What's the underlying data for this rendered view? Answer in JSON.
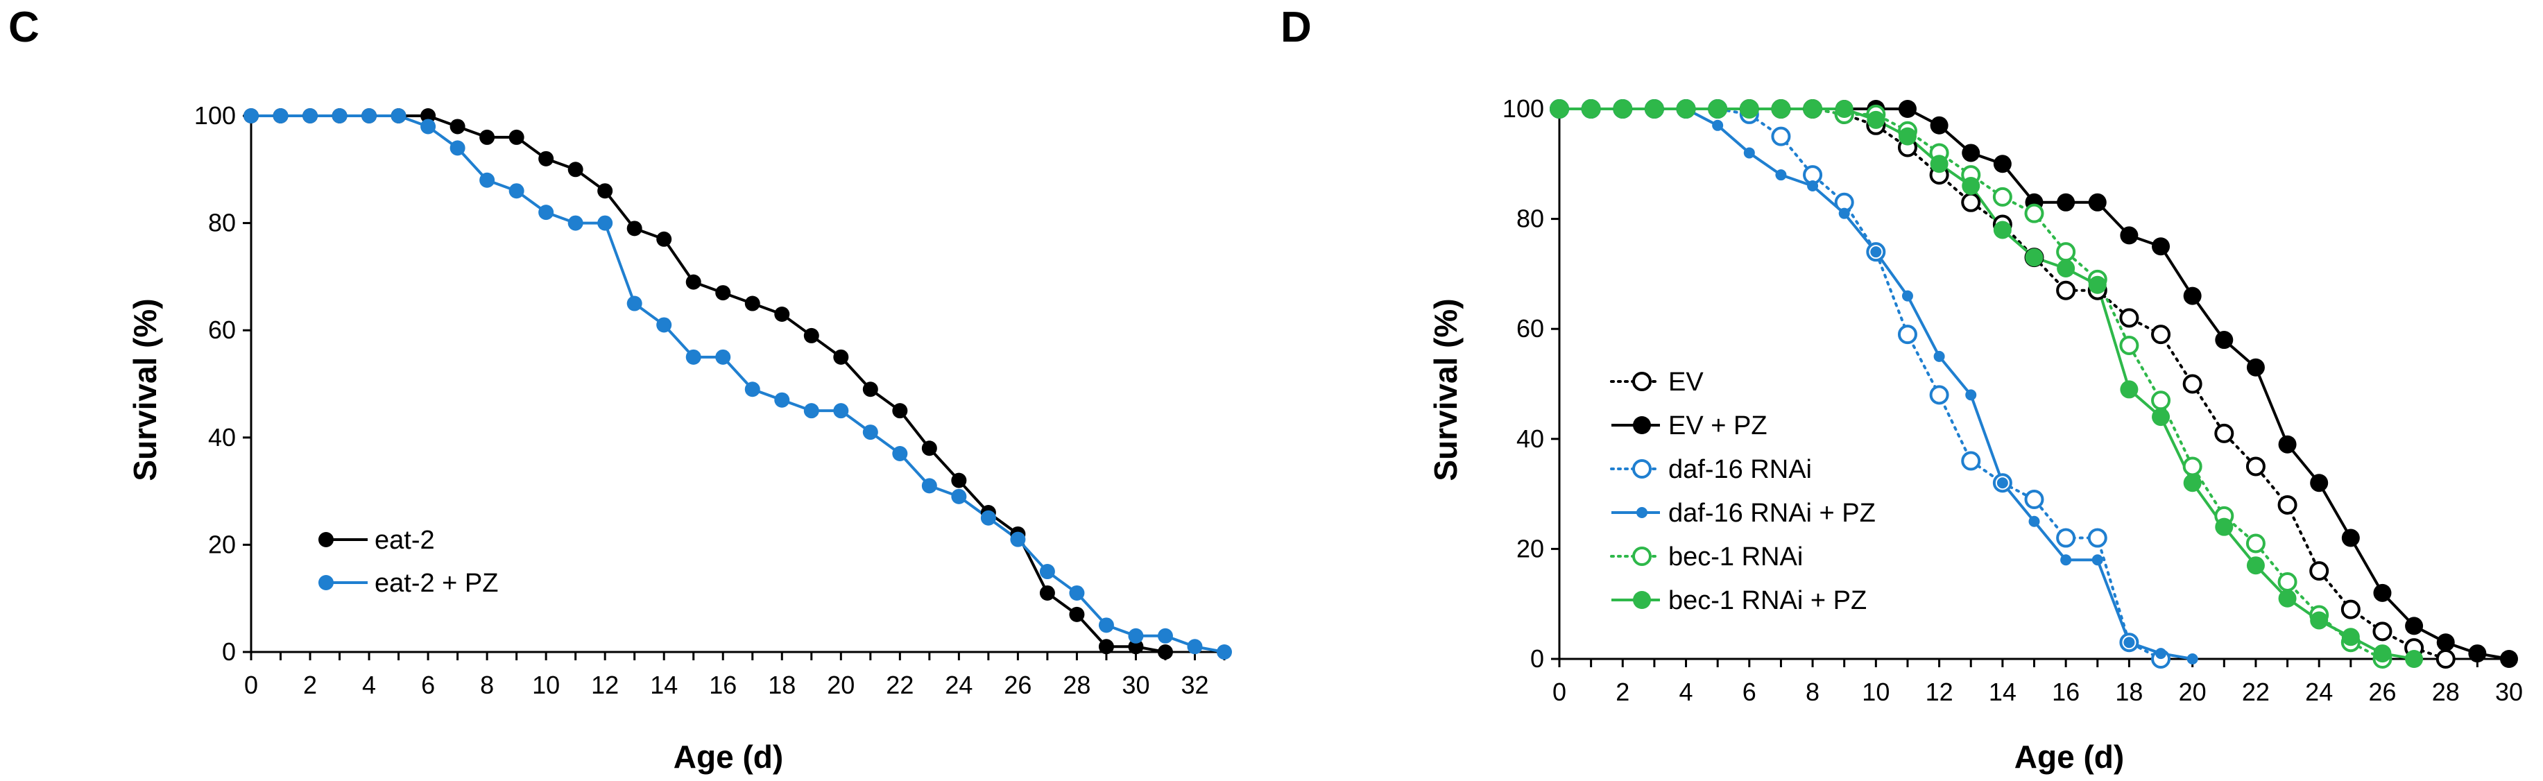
{
  "chart_data": [
    {
      "panel": "C",
      "type": "line",
      "xlabel": "Age (d)",
      "ylabel": "Survival (%)",
      "xlim": [
        0,
        33
      ],
      "ylim": [
        0,
        100
      ],
      "xticks": [
        0,
        2,
        4,
        6,
        8,
        10,
        12,
        14,
        16,
        18,
        20,
        22,
        24,
        26,
        28,
        30,
        32
      ],
      "yticks": [
        0,
        20,
        40,
        60,
        80,
        100
      ],
      "legend_position": "bottom-left",
      "series": [
        {
          "name": "eat-2",
          "color": "#000000",
          "line": "solid",
          "marker": "filled",
          "x": [
            0,
            1,
            2,
            3,
            4,
            5,
            6,
            7,
            8,
            9,
            10,
            11,
            12,
            13,
            14,
            15,
            16,
            17,
            18,
            19,
            20,
            21,
            22,
            23,
            24,
            25,
            26,
            27,
            28,
            29,
            30,
            31
          ],
          "y": [
            100,
            100,
            100,
            100,
            100,
            100,
            100,
            98,
            96,
            96,
            92,
            90,
            86,
            79,
            77,
            69,
            67,
            65,
            63,
            59,
            55,
            49,
            45,
            38,
            32,
            26,
            22,
            11,
            7,
            1,
            1,
            0
          ]
        },
        {
          "name": "eat-2 + PZ",
          "color": "#1f7fd0",
          "line": "solid",
          "marker": "filled",
          "x": [
            0,
            1,
            2,
            3,
            4,
            5,
            6,
            7,
            8,
            9,
            10,
            11,
            12,
            13,
            14,
            15,
            16,
            17,
            18,
            19,
            20,
            21,
            22,
            23,
            24,
            25,
            26,
            27,
            28,
            29,
            30,
            31,
            32,
            33
          ],
          "y": [
            100,
            100,
            100,
            100,
            100,
            100,
            98,
            94,
            88,
            86,
            82,
            80,
            80,
            65,
            61,
            55,
            55,
            49,
            47,
            45,
            45,
            41,
            37,
            31,
            29,
            25,
            21,
            15,
            11,
            5,
            3,
            3,
            1,
            0
          ]
        }
      ]
    },
    {
      "panel": "D",
      "type": "line",
      "xlabel": "Age (d)",
      "ylabel": "Survival (%)",
      "xlim": [
        0,
        30
      ],
      "ylim": [
        0,
        100
      ],
      "xticks": [
        0,
        2,
        4,
        6,
        8,
        10,
        12,
        14,
        16,
        18,
        20,
        22,
        24,
        26,
        28,
        30
      ],
      "yticks": [
        0,
        20,
        40,
        60,
        80,
        100
      ],
      "legend_position": "bottom-left",
      "series": [
        {
          "name": "EV",
          "color": "#000000",
          "line": "dotted",
          "marker": "open",
          "x": [
            0,
            1,
            2,
            3,
            4,
            5,
            6,
            7,
            8,
            9,
            10,
            11,
            12,
            13,
            14,
            15,
            16,
            17,
            18,
            19,
            20,
            21,
            22,
            23,
            24,
            25,
            26,
            27,
            28
          ],
          "y": [
            100,
            100,
            100,
            100,
            100,
            100,
            100,
            100,
            100,
            99,
            97,
            93,
            88,
            83,
            79,
            73,
            67,
            67,
            62,
            59,
            50,
            41,
            35,
            28,
            16,
            9,
            5,
            2,
            0
          ]
        },
        {
          "name": "EV + PZ",
          "color": "#000000",
          "line": "solid",
          "marker": "filled",
          "x": [
            0,
            1,
            2,
            3,
            4,
            5,
            6,
            7,
            8,
            9,
            10,
            11,
            12,
            13,
            14,
            15,
            16,
            17,
            18,
            19,
            20,
            21,
            22,
            23,
            24,
            25,
            26,
            27,
            28,
            29,
            30
          ],
          "y": [
            100,
            100,
            100,
            100,
            100,
            100,
            100,
            100,
            100,
            100,
            100,
            100,
            97,
            92,
            90,
            83,
            83,
            83,
            77,
            75,
            66,
            58,
            53,
            39,
            32,
            22,
            12,
            6,
            3,
            1,
            0
          ]
        },
        {
          "name": "daf-16 RNAi",
          "color": "#1f7fd0",
          "line": "dotted",
          "marker": "open",
          "x": [
            0,
            1,
            2,
            3,
            4,
            5,
            6,
            7,
            8,
            9,
            10,
            11,
            12,
            13,
            14,
            15,
            16,
            17,
            18,
            19
          ],
          "y": [
            100,
            100,
            100,
            100,
            100,
            100,
            99,
            95,
            88,
            83,
            74,
            59,
            48,
            36,
            32,
            29,
            22,
            22,
            3,
            0
          ]
        },
        {
          "name": "daf-16 RNAi + PZ",
          "color": "#1f7fd0",
          "line": "solid",
          "marker": "filled-small",
          "x": [
            0,
            1,
            2,
            3,
            4,
            5,
            6,
            7,
            8,
            9,
            10,
            11,
            12,
            13,
            14,
            15,
            16,
            17,
            18,
            19,
            20
          ],
          "y": [
            100,
            100,
            100,
            100,
            100,
            97,
            92,
            88,
            86,
            81,
            74,
            66,
            55,
            48,
            32,
            25,
            18,
            18,
            3,
            1,
            0
          ]
        },
        {
          "name": "bec-1 RNAi",
          "color": "#2eb84a",
          "line": "dotted",
          "marker": "open",
          "x": [
            0,
            1,
            2,
            3,
            4,
            5,
            6,
            7,
            8,
            9,
            10,
            11,
            12,
            13,
            14,
            15,
            16,
            17,
            18,
            19,
            20,
            21,
            22,
            23,
            24,
            25,
            26
          ],
          "y": [
            100,
            100,
            100,
            100,
            100,
            100,
            100,
            100,
            100,
            99,
            99,
            96,
            92,
            88,
            84,
            81,
            74,
            69,
            57,
            47,
            35,
            26,
            21,
            14,
            8,
            3,
            0
          ]
        },
        {
          "name": "bec-1 RNAi + PZ",
          "color": "#2eb84a",
          "line": "solid",
          "marker": "filled",
          "x": [
            0,
            1,
            2,
            3,
            4,
            5,
            6,
            7,
            8,
            9,
            10,
            11,
            12,
            13,
            14,
            15,
            16,
            17,
            18,
            19,
            20,
            21,
            22,
            23,
            24,
            25,
            26,
            27
          ],
          "y": [
            100,
            100,
            100,
            100,
            100,
            100,
            100,
            100,
            100,
            100,
            98,
            95,
            90,
            86,
            78,
            73,
            71,
            68,
            49,
            44,
            32,
            24,
            17,
            11,
            7,
            4,
            1,
            0
          ]
        }
      ]
    }
  ]
}
